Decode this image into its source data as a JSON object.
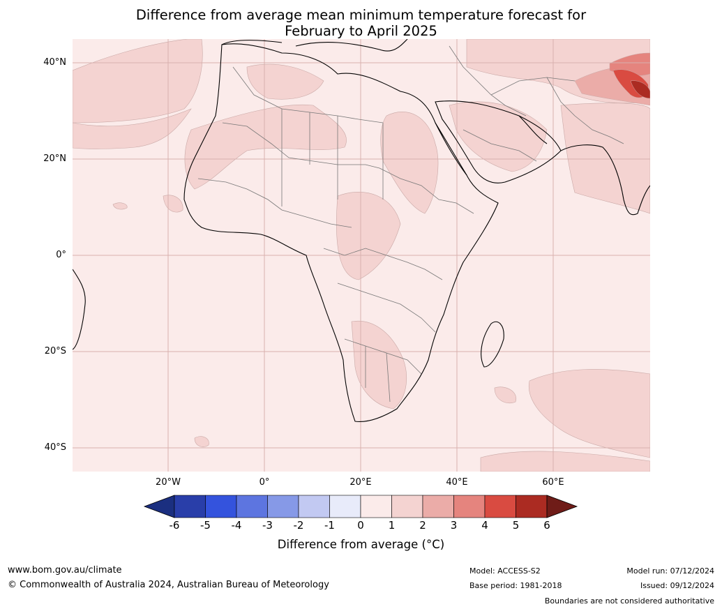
{
  "title": {
    "line1": "Difference from average mean minimum temperature forecast for",
    "line2": "February to April 2025"
  },
  "axes": {
    "lat_labels": [
      "40°N",
      "20°N",
      "0°",
      "20°S",
      "40°S"
    ],
    "lon_labels": [
      "20°W",
      "0°",
      "20°E",
      "40°E",
      "60°E"
    ]
  },
  "map": {
    "region": "Africa, Middle East and South-West Asia",
    "lon_range": [
      -40,
      80
    ],
    "lat_range": [
      -45,
      45
    ],
    "features": [
      "coastlines",
      "country-boundaries",
      "graticule"
    ],
    "dominant_anomaly_class": "0 to 1",
    "colors": {
      "class_0_1": "#fbebea",
      "class_1_2": "#f4d3d1",
      "class_2_3": "#ebaca8",
      "class_3_4": "#e5847e",
      "class_4_5": "#d94b41",
      "class_5_6": "#ab2b22"
    }
  },
  "colorbar": {
    "ticks": [
      "-6",
      "-5",
      "-4",
      "-3",
      "-2",
      "-1",
      "0",
      "1",
      "2",
      "3",
      "4",
      "5",
      "6"
    ],
    "colors": [
      "#1b2f80",
      "#293ea9",
      "#3453dd",
      "#5d75e0",
      "#8699e7",
      "#c2c9f2",
      "#e8ebfa",
      "#fbebea",
      "#f4d3d1",
      "#ebaca8",
      "#e5847e",
      "#d94b41",
      "#ab2b22",
      "#6f1c18"
    ],
    "label": "Difference from average (°C)"
  },
  "footer": {
    "website": "www.bom.gov.au/climate",
    "copyright": "© Commonwealth of Australia 2024, Australian Bureau of Meteorology",
    "model": "Model: ACCESS-S2",
    "base_period": "Base period: 1981-2018",
    "model_run": "Model run: 07/12/2024",
    "issued": "Issued: 09/12/2024",
    "disclaimer": "Boundaries are not considered authoritative"
  }
}
